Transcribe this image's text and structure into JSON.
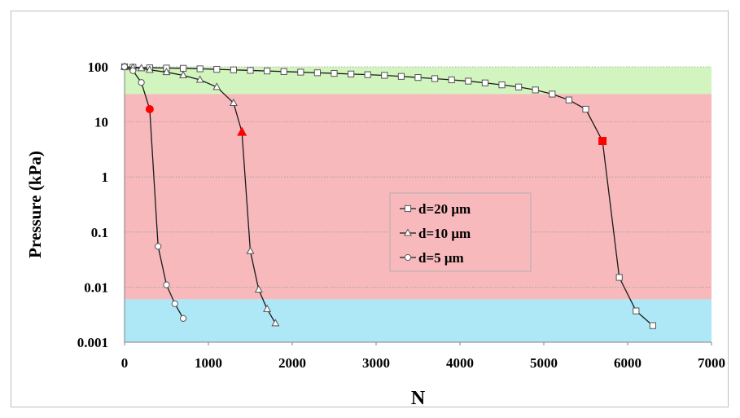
{
  "chart_data": {
    "type": "scatter",
    "title": "",
    "xlabel": "N",
    "ylabel": "Pressure (kPa)",
    "xlim": [
      0,
      7000
    ],
    "ylim": [
      0.001,
      100
    ],
    "y_scale": "log",
    "x_ticks": [
      "0",
      "1000",
      "2000",
      "3000",
      "4000",
      "5000",
      "6000",
      "7000"
    ],
    "y_ticks": [
      "0.001",
      "0.01",
      "0.1",
      "1",
      "10",
      "100"
    ],
    "grid": "horizontal dotted",
    "legend_position": "center-right",
    "bands": [
      {
        "y_from": 32,
        "y_to": 100,
        "color": "#d2f5bf"
      },
      {
        "y_from": 0.006,
        "y_to": 32,
        "color": "#f7b9bc"
      },
      {
        "y_from": 0.001,
        "y_to": 0.006,
        "color": "#aee7f6"
      }
    ],
    "series": [
      {
        "name": "d=20 μm",
        "marker": "square",
        "x": [
          0,
          100,
          300,
          500,
          700,
          900,
          1100,
          1300,
          1500,
          1700,
          1900,
          2100,
          2300,
          2500,
          2700,
          2900,
          3100,
          3300,
          3500,
          3700,
          3900,
          4100,
          4300,
          4500,
          4700,
          4900,
          5100,
          5300,
          5500,
          5700,
          5900,
          6100,
          6300
        ],
        "y": [
          100,
          98,
          96,
          95,
          94,
          92,
          90,
          88,
          86,
          84,
          82,
          80,
          78,
          76,
          74,
          72,
          70,
          67,
          64,
          61,
          58,
          55,
          51,
          47,
          43,
          38,
          32,
          25,
          17,
          4.5,
          0.015,
          0.0037,
          0.002
        ],
        "highlight_index": 29
      },
      {
        "name": "d=10 μm",
        "marker": "triangle",
        "x": [
          0,
          100,
          200,
          300,
          500,
          700,
          900,
          1100,
          1300,
          1400,
          1500,
          1600,
          1700,
          1800
        ],
        "y": [
          100,
          97,
          94,
          88,
          80,
          70,
          58,
          43,
          22,
          6.5,
          0.045,
          0.009,
          0.004,
          0.0022
        ],
        "highlight_index": 9
      },
      {
        "name": "d=5 μm",
        "marker": "circle",
        "x": [
          0,
          100,
          200,
          300,
          400,
          500,
          600,
          700
        ],
        "y": [
          100,
          85,
          52,
          17,
          0.055,
          0.011,
          0.005,
          0.0027
        ],
        "highlight_index": 3
      }
    ],
    "highlight_color": "#ff0000",
    "line_color": "#1a1a1a",
    "marker_fill": "#ffffff"
  }
}
